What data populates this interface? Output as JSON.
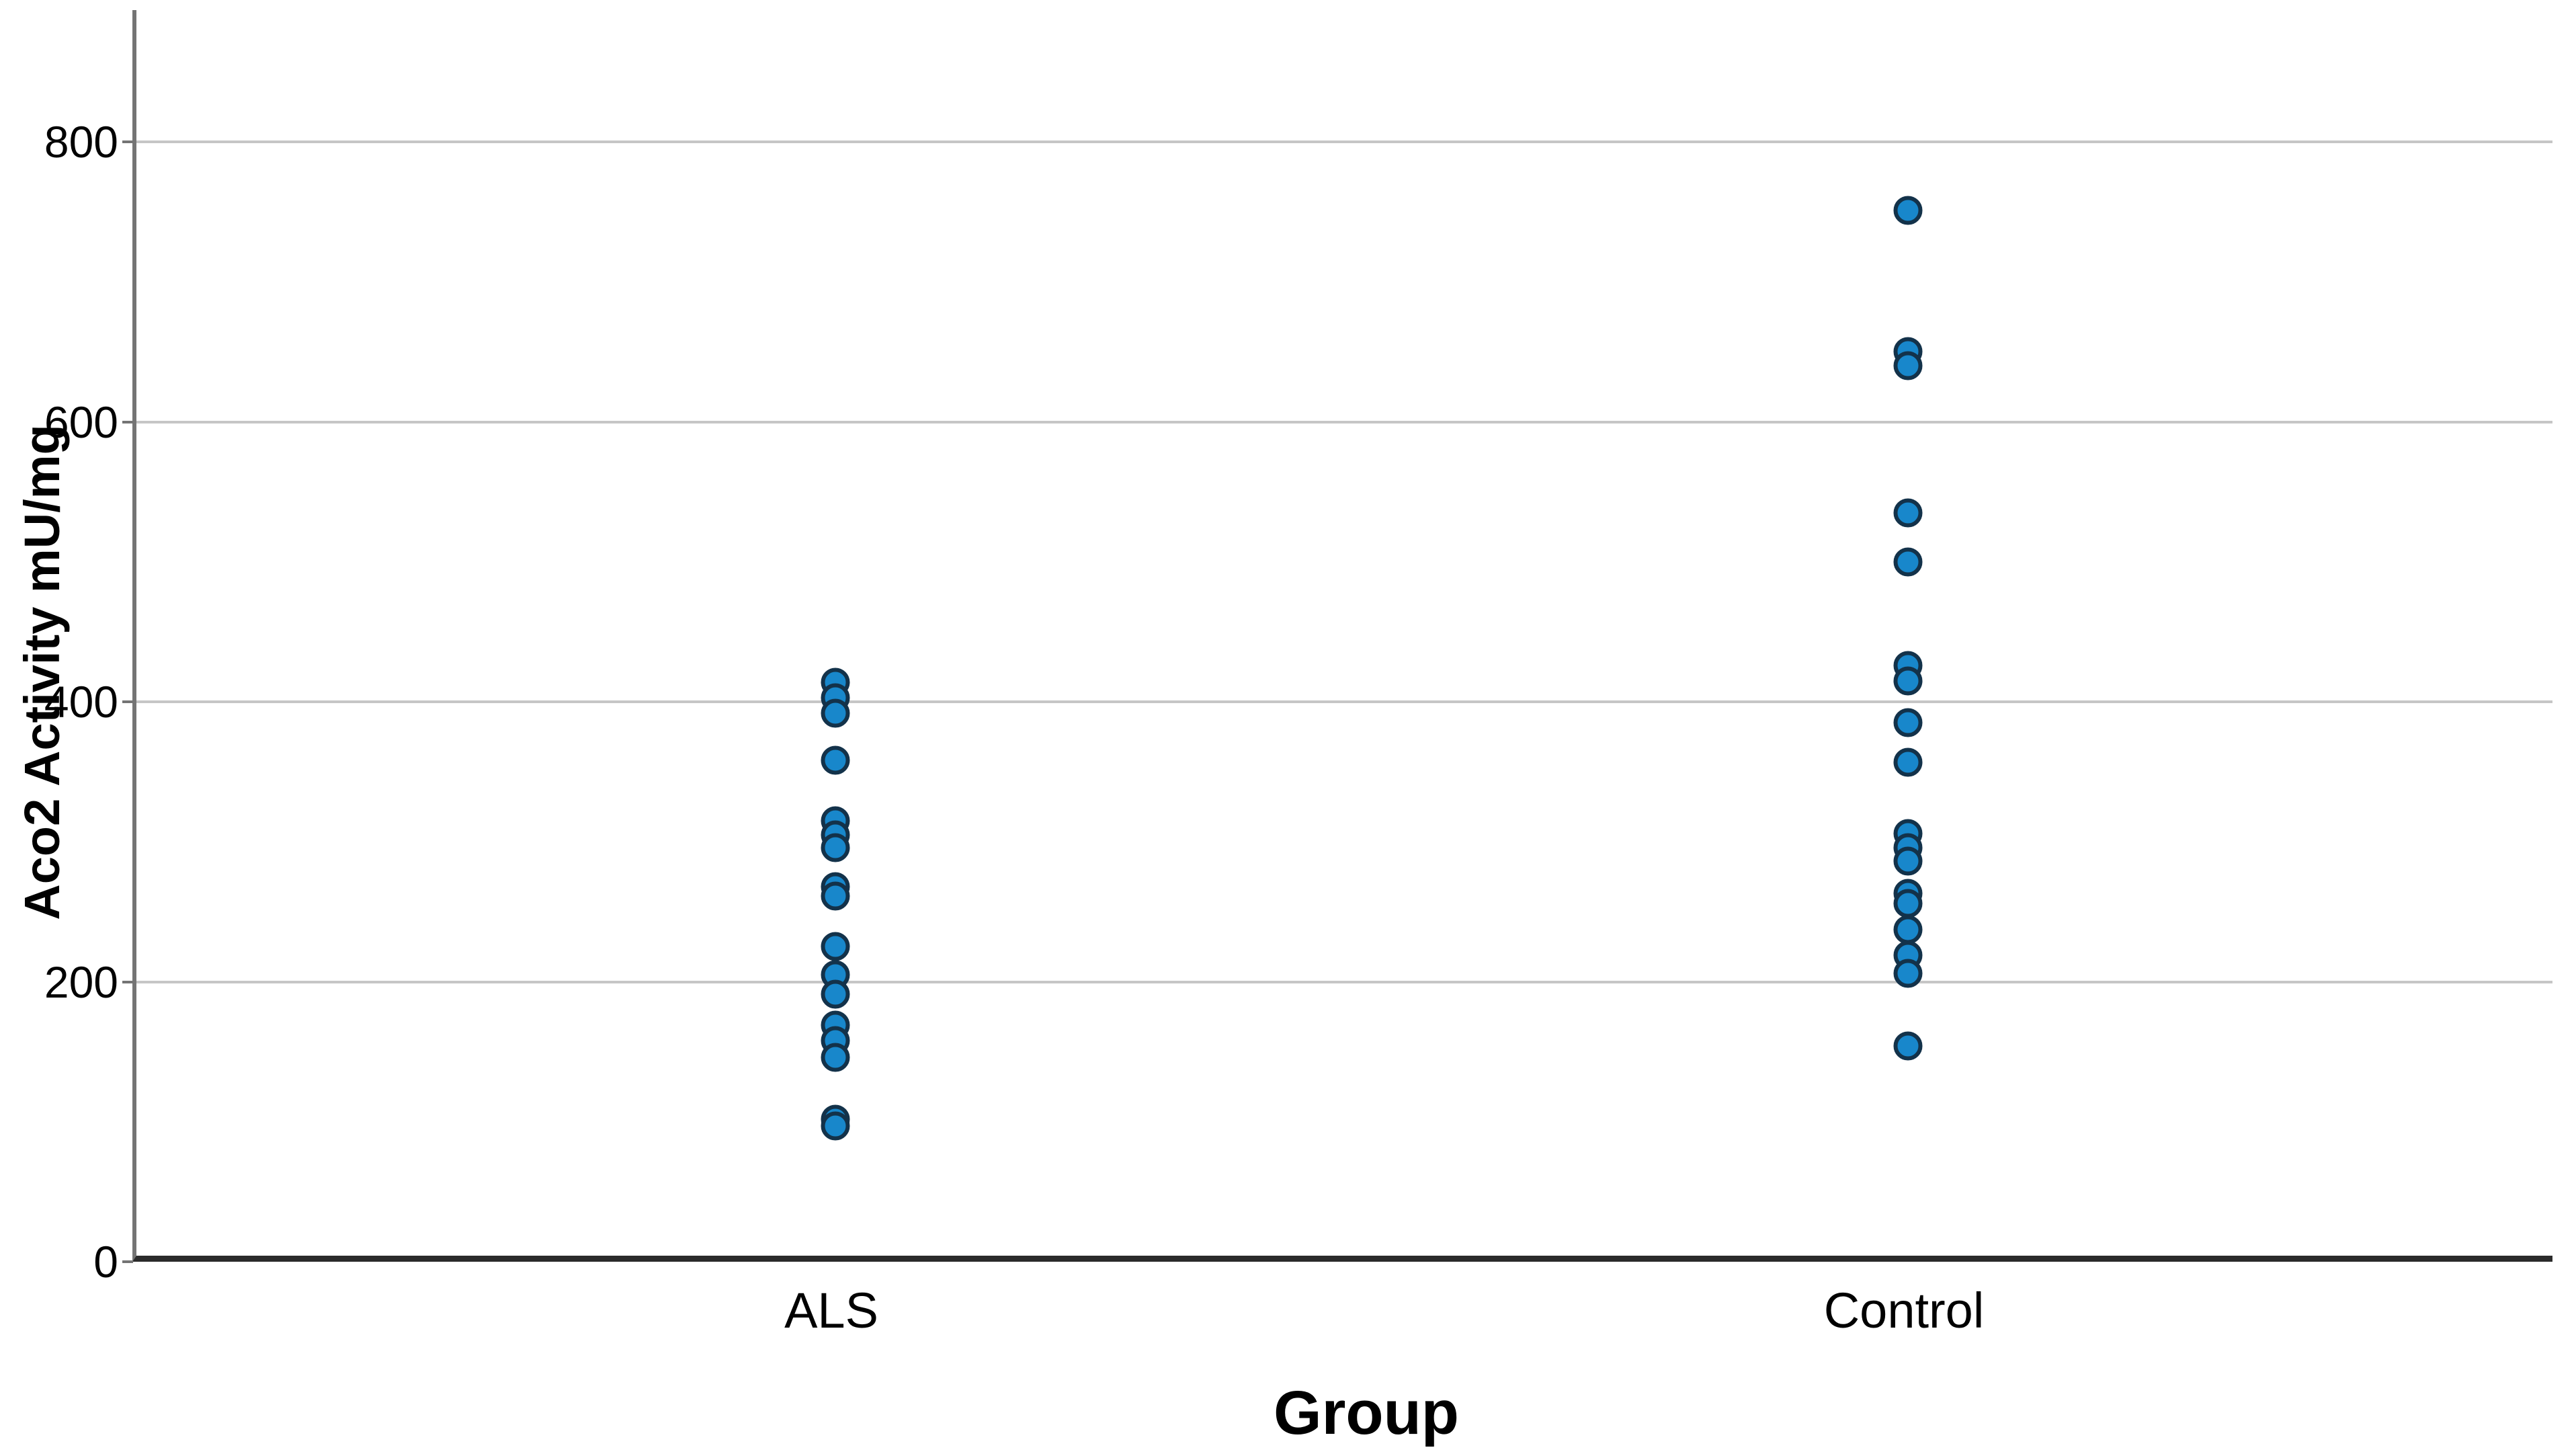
{
  "figure": {
    "background": "#ffffff"
  },
  "chart_data": {
    "type": "scatter",
    "title": "",
    "xlabel": "Group",
    "ylabel": "Aco2 Activity mU/mg",
    "categories": [
      "ALS",
      "Control"
    ],
    "ytick_labels": [
      "0",
      "200",
      "400",
      "600",
      "800"
    ],
    "yticks": [
      0,
      200,
      400,
      600,
      800
    ],
    "ylim": [
      0,
      895
    ],
    "grid": "horizontal-only",
    "legend": "none",
    "series": [
      {
        "name": "ALS",
        "values": [
          414,
          403,
          392,
          358,
          315,
          305,
          296,
          268,
          261,
          225,
          205,
          191,
          169,
          158,
          146,
          102,
          97
        ]
      },
      {
        "name": "Control",
        "values": [
          751,
          650,
          640,
          535,
          500,
          426,
          415,
          385,
          357,
          306,
          296,
          286,
          263,
          256,
          237,
          219,
          206,
          154
        ]
      }
    ],
    "marker": {
      "shape": "circle",
      "fill": "#1887CB",
      "outline": "#13324A"
    }
  },
  "colors": {
    "gridline": "#C6C6C6",
    "y_axis_line": "#747474",
    "x_axis_line": "#2B2B2B",
    "text": "#000000"
  }
}
